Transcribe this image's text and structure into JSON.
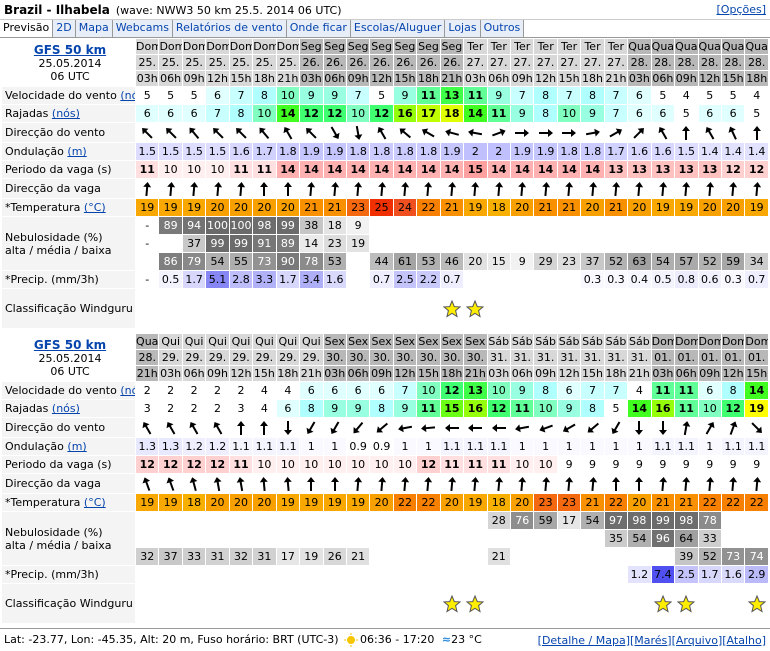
{
  "header": {
    "location": "Brazil - Ilhabela",
    "wave_info": "(wave: NWW3 50 km 25.5. 2014 06 UTC)",
    "options": "[Opções]"
  },
  "tabs": [
    "Previsão",
    "2D",
    "Mapa",
    "Webcams",
    "Relatórios de vento",
    "Onde ficar",
    "Escolas/Aluguer",
    "Lojas",
    "Outros"
  ],
  "row_labels": {
    "wind": {
      "text": "Velocidade do vento",
      "unit": "(nós)"
    },
    "gusts": {
      "text": "Rajadas",
      "unit": "(nós)"
    },
    "wind_dir": {
      "text": "Direcção do vento"
    },
    "swell": {
      "text": "Ondulação",
      "unit": "(m)"
    },
    "period": {
      "text": "Periodo da vaga (s)"
    },
    "wave_dir": {
      "text": "Direcção da vaga"
    },
    "temperature": {
      "text": "*Temperatura",
      "unit": "(°C)"
    },
    "clouds": {
      "text": "Nebulosidade (%)",
      "sub": "alta / média / baixa"
    },
    "precip": {
      "text": "*Precip. (mm/3h)"
    },
    "rating": {
      "text": "Classificação Windguru"
    }
  },
  "forecasts": [
    {
      "model": "GFS 50 km",
      "date": "25.05.2014",
      "run": "06 UTC",
      "days": [
        {
          "name": "Dom",
          "date": "25.",
          "hours": [
            "03h",
            "06h",
            "09h",
            "12h",
            "15h",
            "18h",
            "21h"
          ]
        },
        {
          "name": "Seg",
          "date": "26.",
          "hours": [
            "03h",
            "06h",
            "09h",
            "12h",
            "15h",
            "18h",
            "21h"
          ]
        },
        {
          "name": "Ter",
          "date": "27.",
          "hours": [
            "03h",
            "06h",
            "09h",
            "12h",
            "15h",
            "18h",
            "21h"
          ]
        },
        {
          "name": "Qua",
          "date": "28.",
          "hours": [
            "03h",
            "06h",
            "09h",
            "12h",
            "15h",
            "18h"
          ]
        }
      ],
      "wind": [
        5,
        5,
        5,
        6,
        7,
        8,
        10,
        9,
        9,
        7,
        5,
        9,
        11,
        13,
        11,
        9,
        7,
        8,
        7,
        8,
        7,
        6,
        5,
        4,
        5,
        5,
        4
      ],
      "gusts": [
        6,
        6,
        6,
        7,
        8,
        10,
        14,
        12,
        12,
        10,
        12,
        16,
        17,
        18,
        14,
        11,
        9,
        8,
        10,
        9,
        7,
        6,
        6,
        5,
        6,
        6,
        5
      ],
      "wind_dir": [
        315,
        315,
        320,
        315,
        315,
        320,
        330,
        315,
        150,
        170,
        330,
        310,
        300,
        285,
        280,
        70,
        90,
        90,
        90,
        80,
        60,
        45,
        330,
        0,
        330,
        335,
        0
      ],
      "swell": [
        1.5,
        1.5,
        1.5,
        1.5,
        1.6,
        1.7,
        1.8,
        1.9,
        1.9,
        1.8,
        1.8,
        1.8,
        1.8,
        1.9,
        2,
        2,
        1.9,
        1.9,
        1.8,
        1.8,
        1.7,
        1.6,
        1.6,
        1.5,
        1.4,
        1.4,
        1.4
      ],
      "period": [
        11,
        10,
        10,
        10,
        11,
        11,
        14,
        14,
        14,
        14,
        14,
        14,
        14,
        14,
        15,
        14,
        14,
        14,
        14,
        14,
        13,
        13,
        13,
        13,
        13,
        12,
        12
      ],
      "wave_dir": [
        5,
        5,
        5,
        5,
        5,
        0,
        0,
        5,
        5,
        5,
        5,
        5,
        5,
        5,
        5,
        5,
        5,
        5,
        5,
        5,
        5,
        5,
        5,
        5,
        5,
        5,
        5
      ],
      "temperature": [
        19,
        19,
        19,
        20,
        20,
        20,
        20,
        21,
        21,
        23,
        25,
        24,
        22,
        21,
        19,
        18,
        20,
        21,
        21,
        20,
        21,
        20,
        19,
        19,
        20,
        20,
        19
      ],
      "cloud_high": [
        "-",
        89,
        94,
        100,
        100,
        98,
        99,
        38,
        18,
        9,
        null,
        null,
        null,
        null,
        null,
        null,
        null,
        null,
        null,
        null,
        null,
        null,
        null,
        null,
        null,
        null,
        null
      ],
      "cloud_mid": [
        "-",
        null,
        37,
        99,
        99,
        91,
        89,
        14,
        23,
        19,
        null,
        null,
        null,
        null,
        null,
        null,
        null,
        null,
        null,
        null,
        null,
        null,
        null,
        null,
        null,
        null,
        null
      ],
      "cloud_low": [
        null,
        86,
        79,
        54,
        55,
        73,
        90,
        78,
        53,
        null,
        44,
        61,
        53,
        46,
        20,
        15,
        9,
        29,
        23,
        37,
        52,
        63,
        54,
        57,
        52,
        59,
        34
      ],
      "precip": [
        "-",
        0.5,
        1.7,
        5.1,
        2.8,
        3.3,
        1.7,
        3.4,
        1.6,
        null,
        0.7,
        2.5,
        2.2,
        0.7,
        null,
        null,
        null,
        null,
        null,
        0.3,
        0.3,
        0.4,
        0.5,
        0.8,
        0.6,
        0.3,
        0.7
      ],
      "rating": [
        null,
        null,
        null,
        null,
        null,
        null,
        null,
        null,
        null,
        null,
        null,
        null,
        null,
        1,
        1,
        null,
        null,
        null,
        null,
        null,
        null,
        null,
        null,
        null,
        null,
        null,
        null
      ]
    },
    {
      "model": "GFS 50 km",
      "date": "25.05.2014",
      "run": "06 UTC",
      "days": [
        {
          "name": "Qua",
          "date": "28.",
          "hours": [
            "21h"
          ]
        },
        {
          "name": "Qui",
          "date": "29.",
          "hours": [
            "03h",
            "06h",
            "09h",
            "12h",
            "15h",
            "18h",
            "21h"
          ]
        },
        {
          "name": "Sex",
          "date": "30.",
          "hours": [
            "03h",
            "06h",
            "09h",
            "12h",
            "15h",
            "18h",
            "21h"
          ]
        },
        {
          "name": "Sáb",
          "date": "31.",
          "hours": [
            "03h",
            "06h",
            "09h",
            "12h",
            "15h",
            "18h",
            "21h"
          ]
        },
        {
          "name": "Dom",
          "date": "01.",
          "hours": [
            "03h",
            "06h",
            "09h",
            "12h",
            "15h"
          ]
        }
      ],
      "wind": [
        2,
        2,
        2,
        2,
        2,
        4,
        4,
        6,
        6,
        6,
        6,
        7,
        10,
        12,
        13,
        10,
        9,
        8,
        6,
        7,
        7,
        4,
        11,
        11,
        6,
        8,
        14
      ],
      "gusts": [
        3,
        2,
        2,
        2,
        3,
        4,
        6,
        8,
        9,
        9,
        8,
        9,
        11,
        15,
        16,
        12,
        11,
        10,
        9,
        8,
        5,
        14,
        16,
        11,
        10,
        12,
        19
      ],
      "wind_dir": [
        330,
        330,
        330,
        330,
        0,
        0,
        180,
        210,
        210,
        220,
        230,
        260,
        265,
        270,
        270,
        270,
        260,
        250,
        240,
        230,
        210,
        180,
        180,
        10,
        30,
        20,
        135
      ],
      "swell": [
        1.3,
        1.3,
        1.2,
        1.2,
        1.1,
        1.1,
        1.1,
        1,
        1,
        0.9,
        0.9,
        1,
        1,
        1.1,
        1.1,
        1.1,
        1,
        1,
        1,
        1,
        1,
        1,
        1.1,
        1.1,
        1,
        1.1,
        1.1
      ],
      "period": [
        12,
        12,
        12,
        12,
        11,
        10,
        10,
        10,
        10,
        10,
        10,
        10,
        12,
        11,
        11,
        11,
        10,
        10,
        9,
        9,
        9,
        9,
        9,
        9,
        9,
        9,
        9
      ],
      "wave_dir": [
        340,
        340,
        345,
        350,
        350,
        355,
        355,
        0,
        0,
        5,
        5,
        5,
        5,
        5,
        5,
        5,
        5,
        5,
        5,
        5,
        0,
        0,
        5,
        5,
        5,
        5,
        5
      ],
      "temperature": [
        19,
        19,
        18,
        20,
        20,
        20,
        19,
        19,
        19,
        19,
        20,
        22,
        22,
        20,
        19,
        18,
        20,
        23,
        23,
        21,
        22,
        20,
        21,
        21,
        22,
        22,
        22
      ],
      "cloud_high": [
        null,
        null,
        null,
        null,
        null,
        null,
        null,
        null,
        null,
        null,
        null,
        null,
        null,
        null,
        null,
        28,
        76,
        59,
        17,
        54,
        97,
        98,
        99,
        98,
        78,
        null,
        null
      ],
      "cloud_mid": [
        null,
        null,
        null,
        null,
        null,
        null,
        null,
        null,
        null,
        null,
        null,
        null,
        null,
        null,
        null,
        null,
        null,
        null,
        null,
        null,
        35,
        54,
        96,
        64,
        33,
        null,
        null
      ],
      "cloud_low": [
        32,
        37,
        33,
        31,
        32,
        31,
        17,
        19,
        26,
        21,
        null,
        null,
        null,
        null,
        null,
        21,
        null,
        null,
        null,
        null,
        null,
        null,
        null,
        39,
        52,
        73,
        74
      ],
      "precip": [
        null,
        null,
        null,
        null,
        null,
        null,
        null,
        null,
        null,
        null,
        null,
        null,
        null,
        null,
        null,
        null,
        null,
        null,
        null,
        null,
        null,
        1.2,
        7.4,
        2.5,
        1.7,
        1.6,
        2.9
      ],
      "rating": [
        null,
        null,
        null,
        null,
        null,
        null,
        null,
        null,
        null,
        null,
        null,
        null,
        null,
        1,
        1,
        null,
        null,
        null,
        null,
        null,
        null,
        null,
        1,
        1,
        null,
        null,
        1
      ]
    }
  ],
  "footer": {
    "location_info": "Lat: -23.77, Lon: -45.35, Alt: 20 m, Fuso horário: BRT (UTC-3)",
    "sun": "06:36 - 17:20",
    "water_temp": "23 °C",
    "links": [
      "[Detalhe / Mapa]",
      "[Marés]",
      "[Arquivo]",
      "[Atalho]"
    ]
  }
}
